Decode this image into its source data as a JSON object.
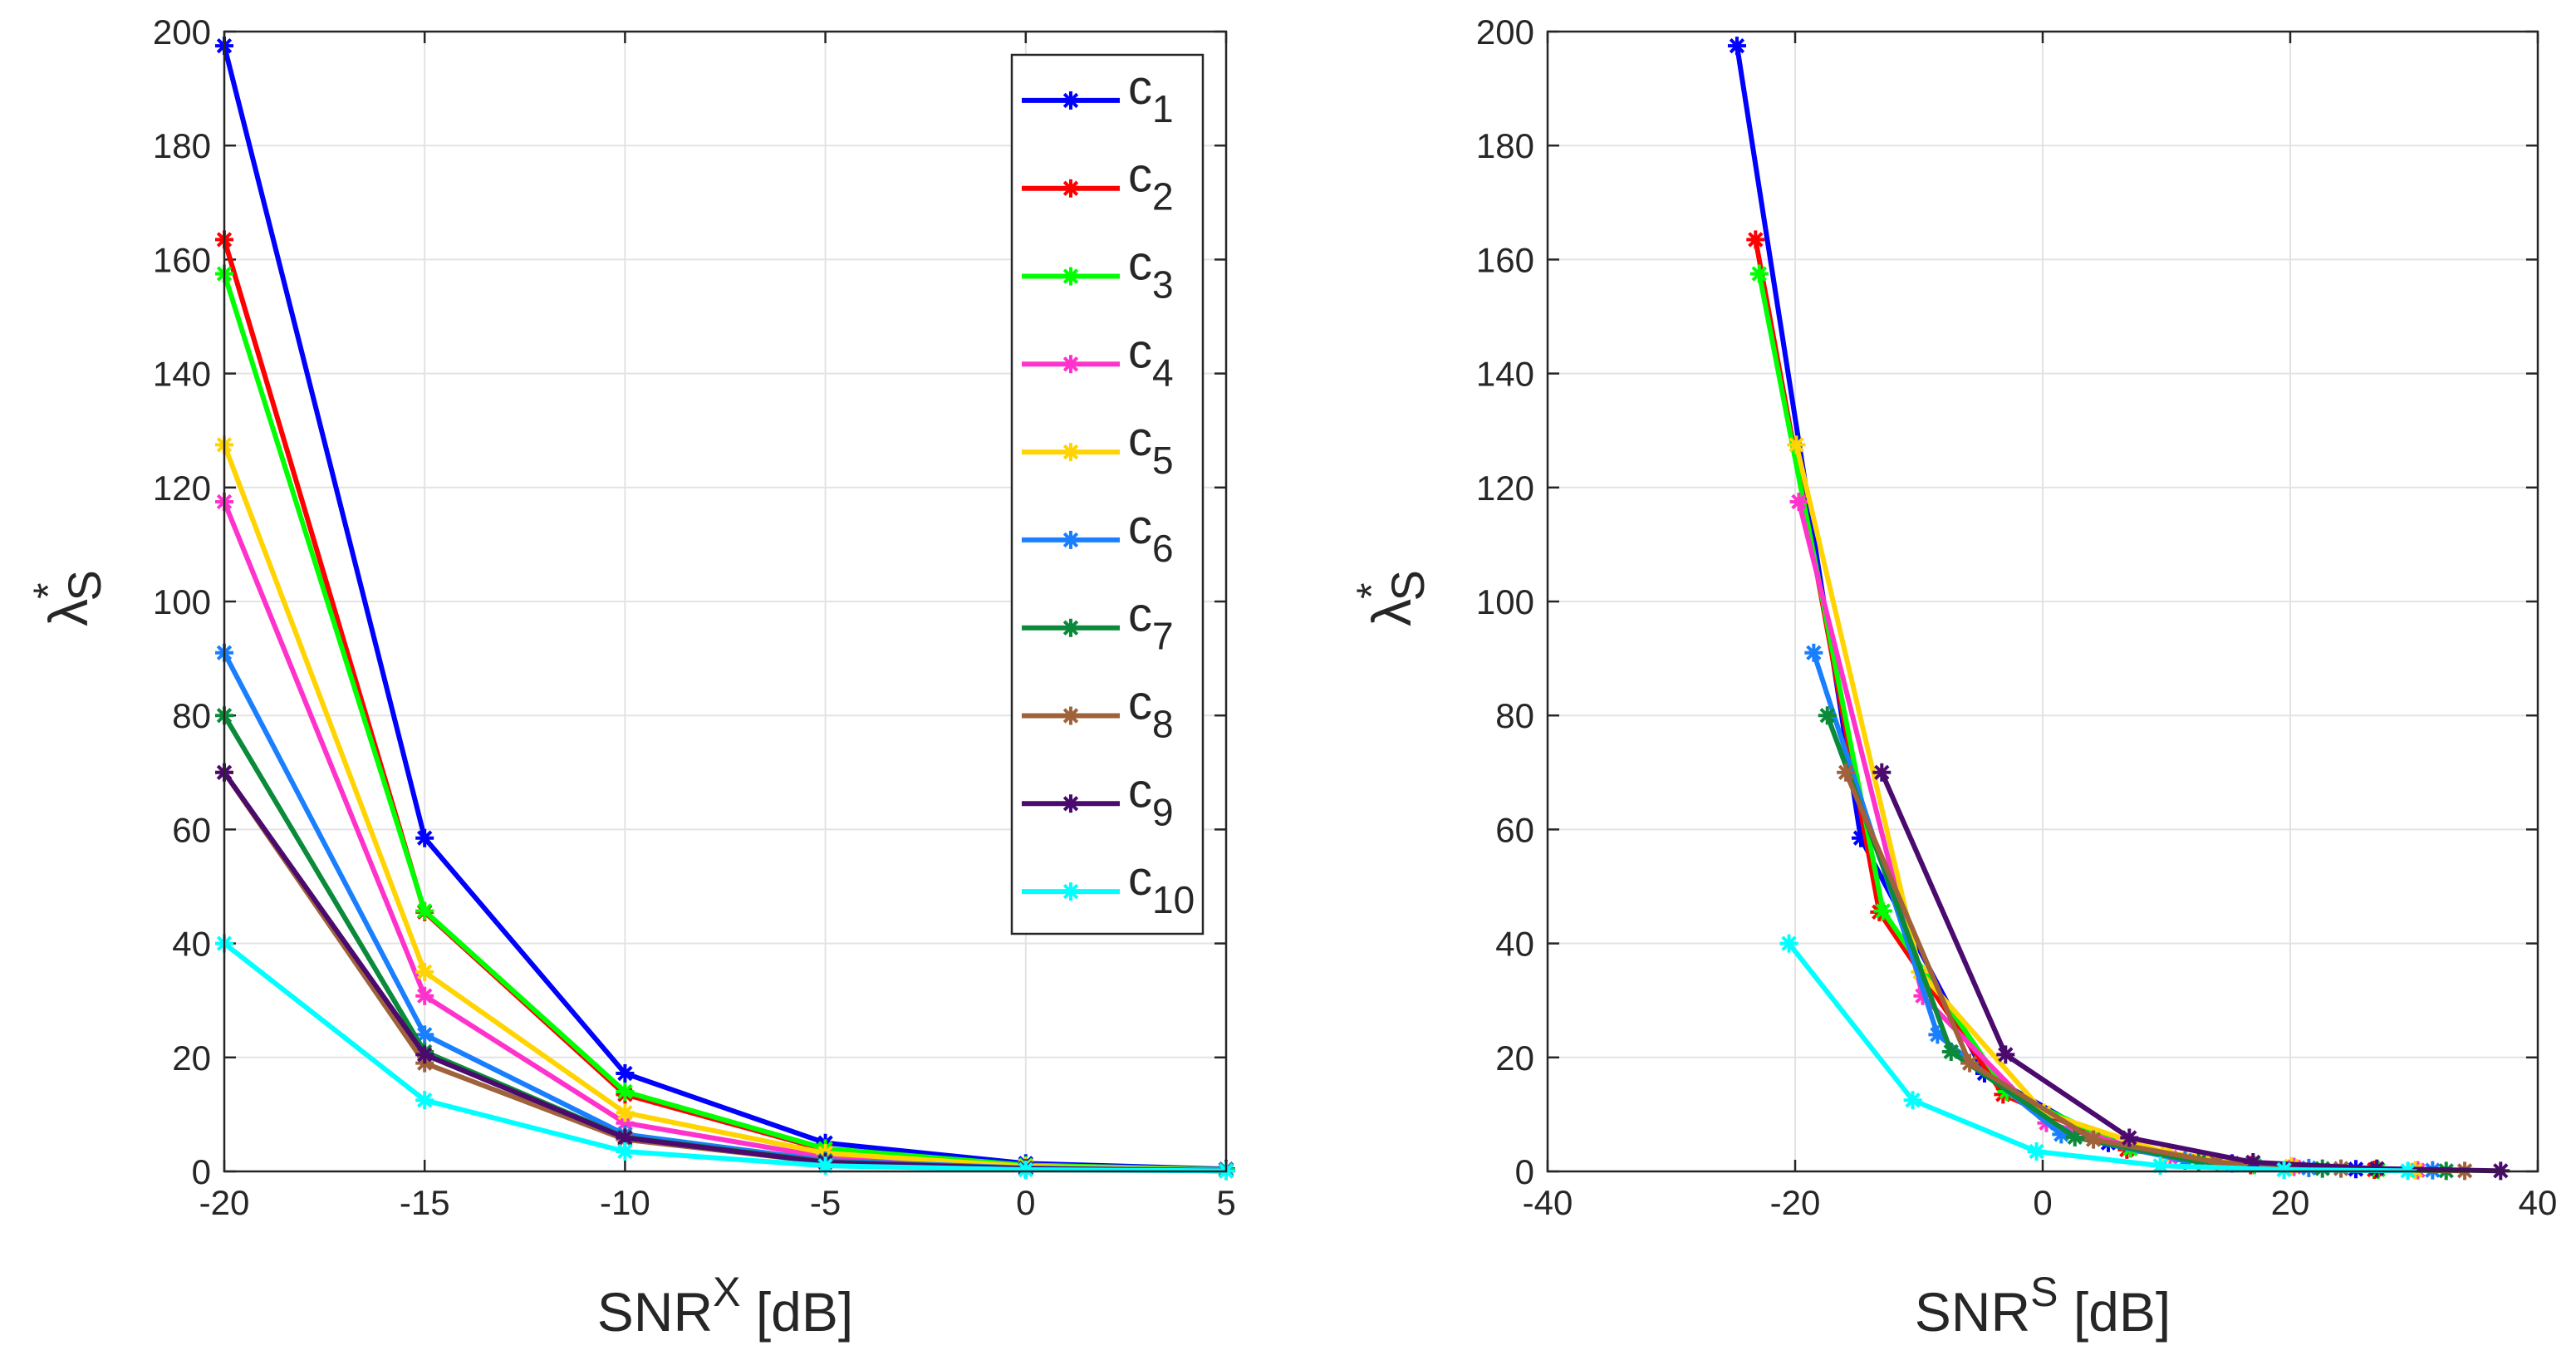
{
  "chart_data": [
    {
      "type": "line",
      "panel": "left",
      "xlabel": "SNR",
      "xlabel_sup": "X",
      "xlabel_unit": " [dB]",
      "ylabel": "λ",
      "ylabel_sup": "*",
      "ylabel_sub": "S",
      "xlim": [
        -20,
        5
      ],
      "ylim": [
        0,
        200
      ],
      "xticks": [
        -20,
        -15,
        -10,
        -5,
        0,
        5
      ],
      "yticks": [
        0,
        20,
        40,
        60,
        80,
        100,
        120,
        140,
        160,
        180,
        200
      ],
      "grid": true,
      "legend": "top-right",
      "x": [
        -20,
        -15,
        -10,
        -5,
        0,
        5
      ],
      "series": [
        {
          "name": "c",
          "sub": "1",
          "color": "#0000ff",
          "values": [
            197.5,
            58.5,
            17.2,
            5.0,
            1.4,
            0.4
          ]
        },
        {
          "name": "c",
          "sub": "2",
          "color": "#ff0000",
          "values": [
            163.5,
            45.5,
            13.5,
            3.8,
            1.1,
            0.3
          ]
        },
        {
          "name": "c",
          "sub": "3",
          "color": "#00ff00",
          "values": [
            157.5,
            45.7,
            14.0,
            4.0,
            1.1,
            0.3
          ]
        },
        {
          "name": "c",
          "sub": "4",
          "color": "#ff33cc",
          "values": [
            117.5,
            30.8,
            8.5,
            2.5,
            0.8,
            0.2
          ]
        },
        {
          "name": "c",
          "sub": "5",
          "color": "#ffd400",
          "values": [
            127.5,
            35.0,
            10.3,
            3.2,
            0.9,
            0.2
          ]
        },
        {
          "name": "c",
          "sub": "6",
          "color": "#1a7fff",
          "values": [
            91.0,
            24.0,
            6.5,
            1.9,
            0.6,
            0.2
          ]
        },
        {
          "name": "c",
          "sub": "7",
          "color": "#0a8a3a",
          "values": [
            80.0,
            21.0,
            6.0,
            1.7,
            0.5,
            0.1
          ]
        },
        {
          "name": "c",
          "sub": "8",
          "color": "#a0623a",
          "values": [
            70.0,
            19.0,
            5.6,
            1.6,
            0.5,
            0.1
          ]
        },
        {
          "name": "c",
          "sub": "9",
          "color": "#4b0a6e",
          "values": [
            70.0,
            20.5,
            5.9,
            1.6,
            0.5,
            0.1
          ]
        },
        {
          "name": "c",
          "sub": "10",
          "color": "#00ffff",
          "values": [
            40.0,
            12.5,
            3.5,
            1.0,
            0.3,
            0.1
          ]
        }
      ]
    },
    {
      "type": "line",
      "panel": "right",
      "xlabel": "SNR",
      "xlabel_sup": "S",
      "xlabel_unit": " [dB]",
      "ylabel": "λ",
      "ylabel_sup": "*",
      "ylabel_sub": "S",
      "xlim": [
        -40,
        40
      ],
      "ylim": [
        0,
        200
      ],
      "xticks": [
        -40,
        -20,
        0,
        20,
        40
      ],
      "yticks": [
        0,
        20,
        40,
        60,
        80,
        100,
        120,
        140,
        160,
        180,
        200
      ],
      "grid": true,
      "series": [
        {
          "name": "c1",
          "color": "#0000ff",
          "x": [
            -24.7,
            -14.7,
            -4.7,
            5.3,
            15.3,
            25.3
          ],
          "values": [
            197.5,
            58.5,
            17.2,
            5.0,
            1.4,
            0.4
          ]
        },
        {
          "name": "c2",
          "color": "#ff0000",
          "x": [
            -23.2,
            -13.2,
            -3.2,
            6.8,
            16.8,
            26.8
          ],
          "values": [
            163.5,
            45.5,
            13.5,
            3.8,
            1.1,
            0.3
          ]
        },
        {
          "name": "c3",
          "color": "#00ff00",
          "x": [
            -22.9,
            -12.9,
            -2.9,
            7.1,
            17.1,
            27.1
          ],
          "values": [
            157.5,
            45.7,
            14.0,
            4.0,
            1.1,
            0.3
          ]
        },
        {
          "name": "c4",
          "color": "#ff33cc",
          "x": [
            -19.7,
            -9.7,
            0.3,
            10.3,
            20.3,
            30.3
          ],
          "values": [
            117.5,
            30.8,
            8.5,
            2.5,
            0.8,
            0.2
          ]
        },
        {
          "name": "c5",
          "color": "#ffd400",
          "x": [
            -19.9,
            -9.9,
            0.1,
            10.1,
            20.1,
            30.1
          ],
          "values": [
            127.5,
            35.0,
            10.3,
            3.2,
            0.9,
            0.2
          ]
        },
        {
          "name": "c6",
          "color": "#1a7fff",
          "x": [
            -18.5,
            -8.5,
            1.5,
            11.5,
            21.5,
            31.5
          ],
          "values": [
            91.0,
            24.0,
            6.5,
            1.9,
            0.6,
            0.2
          ]
        },
        {
          "name": "c7",
          "color": "#0a8a3a",
          "x": [
            -17.4,
            -7.4,
            2.6,
            12.6,
            22.6,
            32.6
          ],
          "values": [
            80.0,
            21.0,
            6.0,
            1.7,
            0.5,
            0.1
          ]
        },
        {
          "name": "c8",
          "color": "#a0623a",
          "x": [
            -15.9,
            -5.9,
            4.1,
            14.1,
            24.1,
            34.1
          ],
          "values": [
            70.0,
            19.0,
            5.6,
            1.6,
            0.5,
            0.1
          ]
        },
        {
          "name": "c9",
          "color": "#4b0a6e",
          "x": [
            -13.0,
            -3.0,
            7.0,
            17.0,
            27.0,
            37.0
          ],
          "values": [
            70.0,
            20.5,
            5.9,
            1.6,
            0.5,
            0.1
          ]
        },
        {
          "name": "c10",
          "color": "#00ffff",
          "x": [
            -20.5,
            -10.5,
            -0.5,
            9.5,
            19.5,
            29.5
          ],
          "values": [
            40.0,
            12.5,
            3.5,
            1.0,
            0.3,
            0.1
          ]
        }
      ]
    }
  ]
}
